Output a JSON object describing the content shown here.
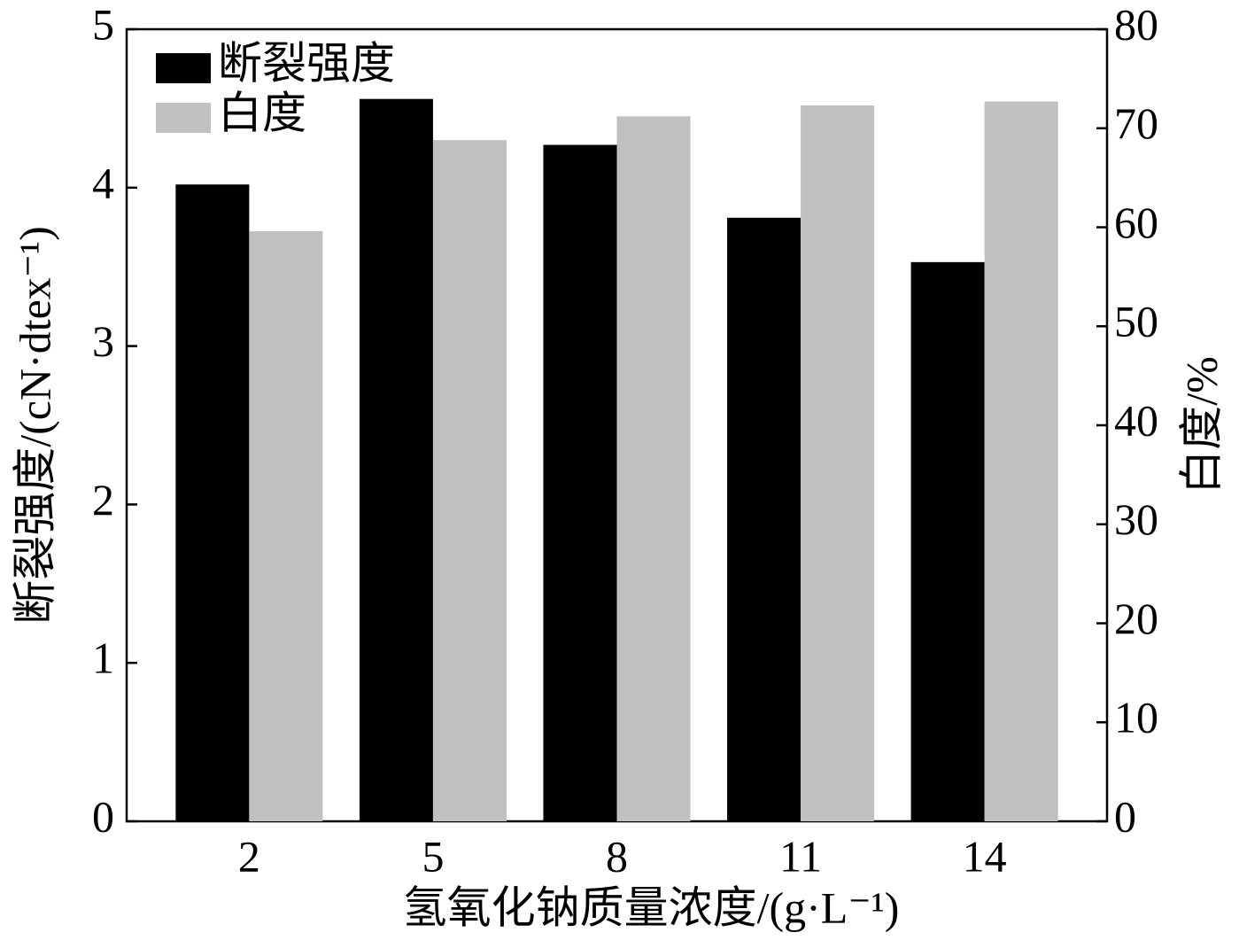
{
  "chart_data": {
    "type": "bar",
    "x_label": "氢氧化钠质量浓度/(g·L⁻¹)",
    "y_label": "断裂强度/(cN·dtex⁻¹)",
    "y2_label": "白度/%",
    "x": [
      2,
      5,
      8,
      11,
      14
    ],
    "xlim": [
      0,
      16
    ],
    "xticks": [
      2,
      5,
      8,
      11,
      14
    ],
    "ylim": [
      0,
      5
    ],
    "yticks": [
      0,
      1,
      2,
      3,
      4,
      5
    ],
    "y2lim": [
      0,
      80
    ],
    "y2ticks": [
      0,
      10,
      20,
      30,
      40,
      50,
      60,
      70,
      80
    ],
    "legend": "upper left",
    "series": [
      {
        "name": "断裂强度",
        "color": "#000000",
        "values": [
          4.02,
          4.56,
          4.27,
          3.81,
          3.53
        ]
      },
      {
        "name": "白度",
        "color": "#c0c0c0",
        "axis": "y2",
        "values": [
          59.6,
          68.8,
          71.2,
          72.3,
          72.7
        ]
      }
    ]
  }
}
